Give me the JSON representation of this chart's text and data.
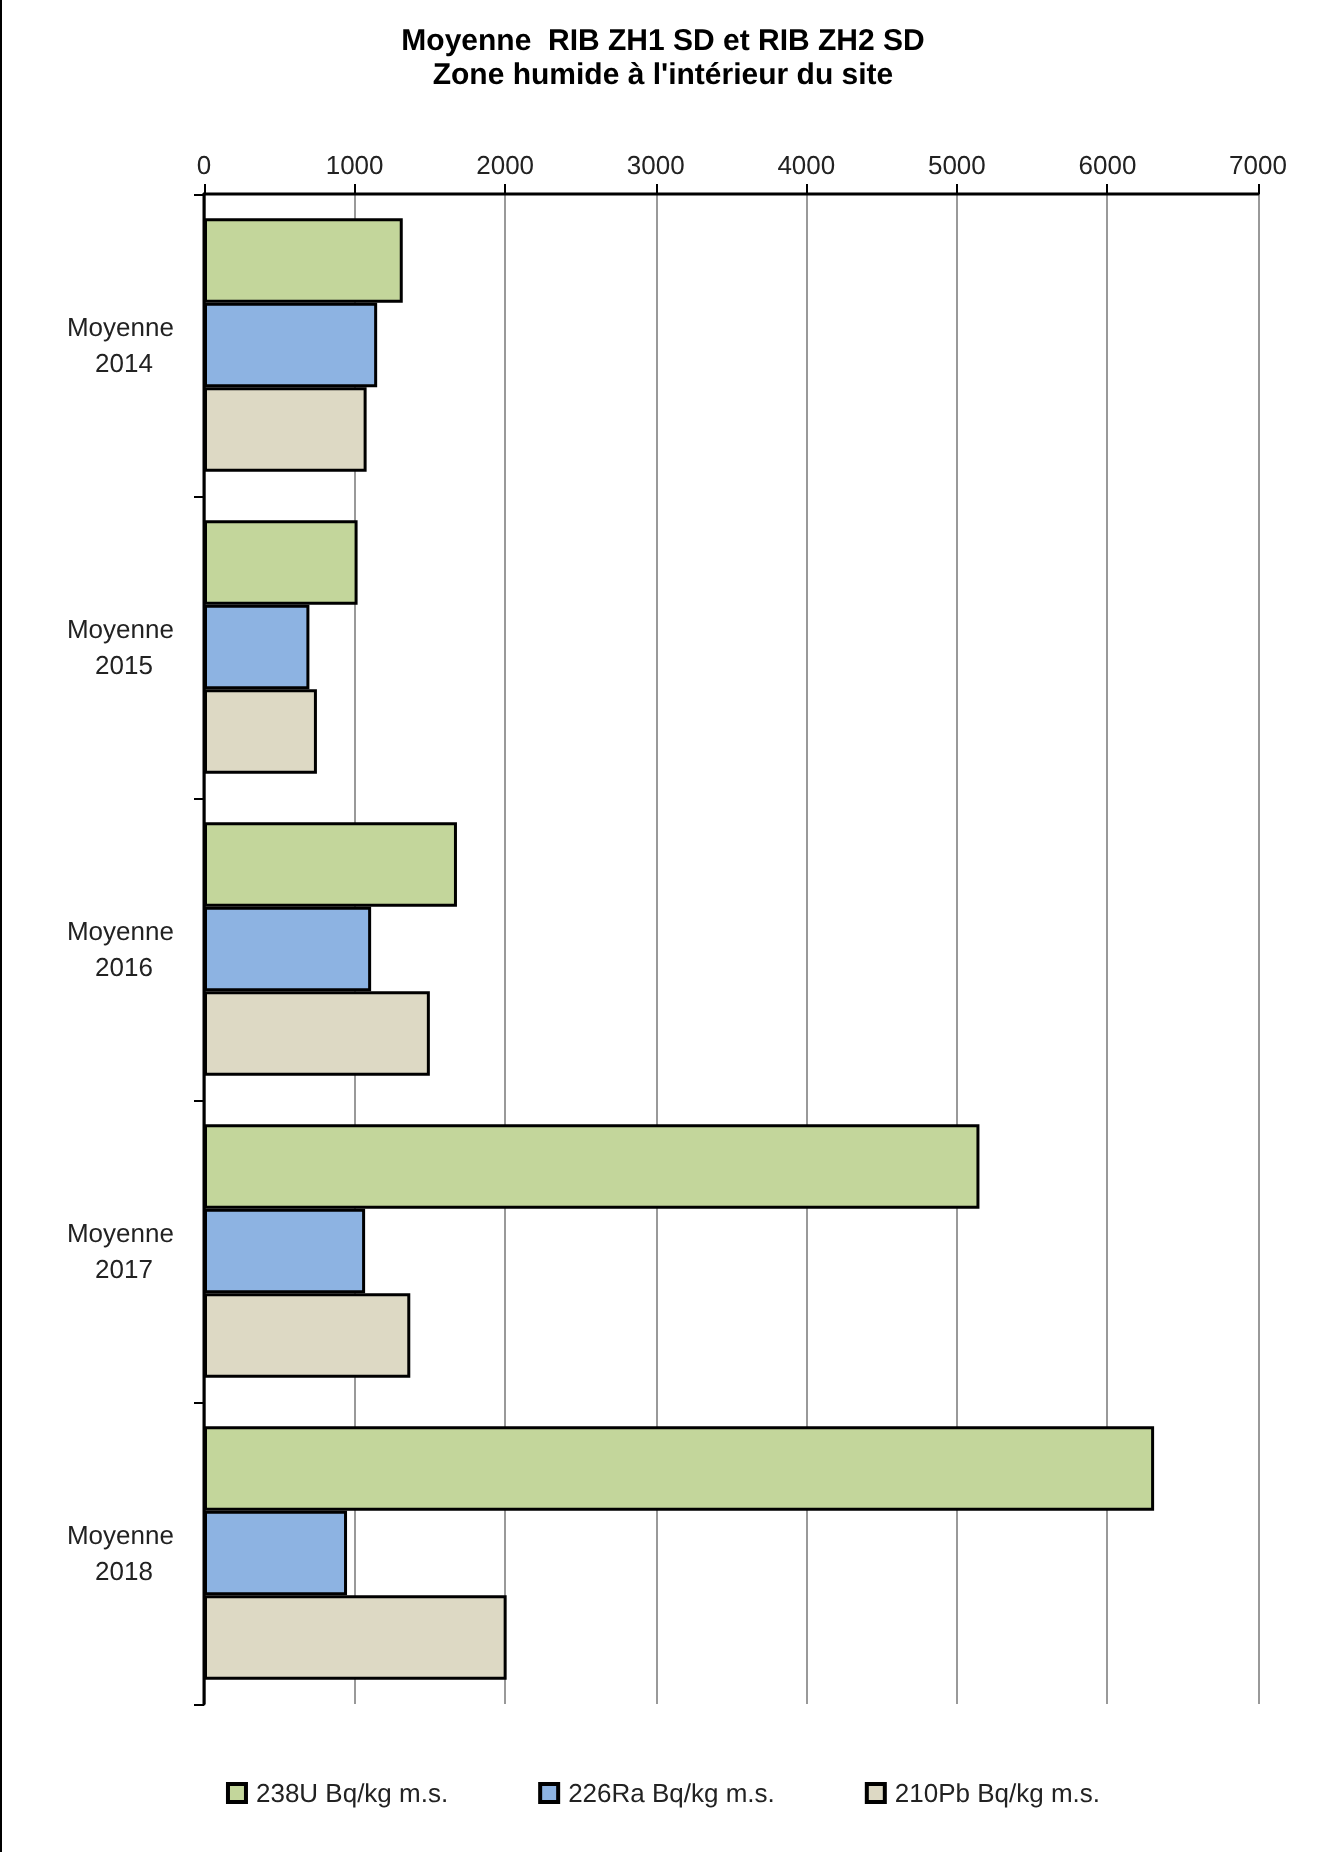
{
  "chart_data": {
    "type": "bar",
    "orientation": "horizontal",
    "title": "Moyenne  RIB ZH1 SD et RIB ZH2 SD",
    "subtitle": "Zone humide à l'intérieur du site",
    "categories": [
      "Moyenne 2014",
      "Moyenne 2015",
      "Moyenne 2016",
      "Moyenne 2017",
      "Moyenne 2018"
    ],
    "series": [
      {
        "name": "238U Bq/kg m.s.",
        "color": "#c3d69b",
        "values": [
          1320,
          1020,
          1680,
          5150,
          6310
        ]
      },
      {
        "name": "226Ra Bq/kg m.s.",
        "color": "#8db3e2",
        "values": [
          1150,
          700,
          1110,
          1070,
          950
        ]
      },
      {
        "name": "210Pb Bq/kg m.s.",
        "color": "#ddd9c4",
        "values": [
          1080,
          750,
          1500,
          1370,
          2010
        ]
      }
    ],
    "xlim": [
      0,
      7000
    ],
    "xticks": [
      0,
      1000,
      2000,
      3000,
      4000,
      5000,
      6000,
      7000
    ],
    "grid": "x",
    "legend": "bottom"
  }
}
